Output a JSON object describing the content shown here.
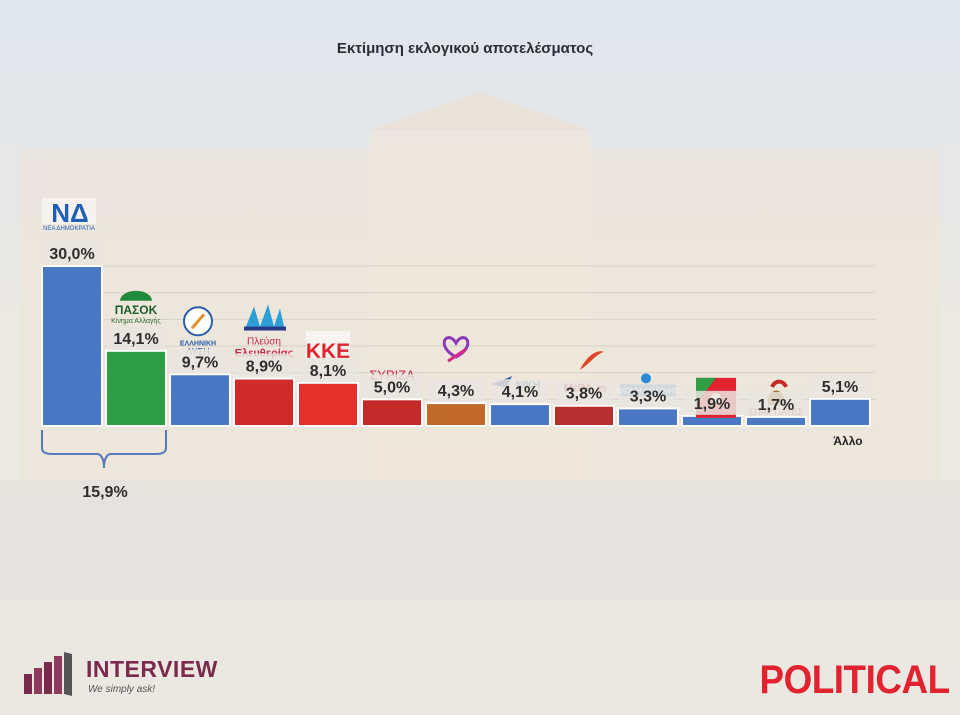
{
  "chart_data": {
    "type": "bar",
    "title": "Εκτίμηση εκλογικού αποτελέσματος",
    "ylim": [
      0,
      30
    ],
    "grid": true,
    "bars": [
      {
        "id": "nd",
        "label": "ΝΔ",
        "value": 30.0,
        "value_label": "30,0%",
        "color": "#4a78c4",
        "logo_text": "ΝΔ",
        "logo_sub": "ΝΕΑ ΔΗΜΟΚΡΑΤΙΑ"
      },
      {
        "id": "pasok",
        "label": "ΠΑΣΟΚ",
        "value": 14.1,
        "value_label": "14,1%",
        "color": "#2f9e44",
        "logo_text": "ΠΑΣΟΚ",
        "logo_sub": "Κίνημα Αλλαγής"
      },
      {
        "id": "elliniki-lysi",
        "label": "ΕΛΛΗΝΙΚΗ ΛΥΣΗ",
        "value": 9.7,
        "value_label": "9,7%",
        "color": "#4a78c4",
        "logo_text": "ΕΛΛΗΝΙΚΗ ΛΥΣΗ",
        "logo_sub": ""
      },
      {
        "id": "plefsi",
        "label": "Πλεύση Ελευθερίας",
        "value": 8.9,
        "value_label": "8,9%",
        "color": "#d12a2a",
        "logo_text": "Πλεύση",
        "logo_sub": "Ελευθερίας"
      },
      {
        "id": "kke",
        "label": "ΚΚΕ",
        "value": 8.1,
        "value_label": "8,1%",
        "color": "#e8302a",
        "logo_text": "ΚΚΕ",
        "logo_sub": ""
      },
      {
        "id": "syriza",
        "label": "ΣΥΡΙΖΑ",
        "value": 5.0,
        "value_label": "5,0%",
        "color": "#c42a2a",
        "logo_text": "ΣΥΡΙΖΑ",
        "logo_sub": ""
      },
      {
        "id": "nea-aristera",
        "label": "Νέα Αριστερά",
        "value": 4.3,
        "value_label": "4,3%",
        "color": "#c26a2a",
        "logo_text": "",
        "logo_sub": ""
      },
      {
        "id": "niki",
        "label": "ΝΙΚΗ",
        "value": 4.1,
        "value_label": "4,1%",
        "color": "#4a78c4",
        "logo_text": "ΝΙΚΗ",
        "logo_sub": ""
      },
      {
        "id": "mera25",
        "label": "ΜέΡΑ25",
        "value": 3.8,
        "value_label": "3,8%",
        "color": "#b8302e",
        "logo_text": "ΜέΡΑ25",
        "logo_sub": ""
      },
      {
        "id": "foni-logikis",
        "label": "ΦΩΝΗ ΛΟΓΙΚΗΣ",
        "value": 3.3,
        "value_label": "3,3%",
        "color": "#4a78c4",
        "logo_text": "ΦΩΝΗ ΛΟΓΙΚΗΣ",
        "logo_sub": ""
      },
      {
        "id": "kinima",
        "label": "",
        "value": 1.9,
        "value_label": "1,9%",
        "color": "#4a78c4",
        "logo_text": "",
        "logo_sub": ""
      },
      {
        "id": "spartiates",
        "label": "ΣΠΑΡΤΙΑΤΕΣ",
        "value": 1.7,
        "value_label": "1,7%",
        "color": "#4a78c4",
        "logo_text": "ΣΠΑΡΤΙΑΤΕΣ",
        "logo_sub": ""
      },
      {
        "id": "allo",
        "label": "Άλλο",
        "value": 5.1,
        "value_label": "5,1%",
        "color": "#4a78c4",
        "logo_text": "",
        "logo_sub": ""
      }
    ],
    "bracket_label": "15,9%"
  },
  "brands": {
    "interview_name": "INTERVIEW",
    "interview_tag": "We simply ask!",
    "political": "POLITICAL"
  },
  "colors": {
    "title": "#2a2d3a",
    "interview": "#7a2a4a",
    "political": "#e0232e"
  }
}
